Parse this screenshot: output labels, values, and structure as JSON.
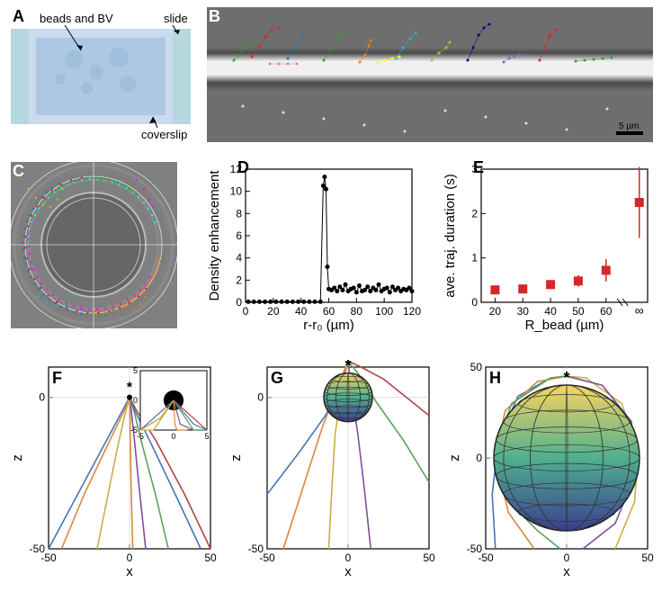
{
  "panelA": {
    "label": "A",
    "annotations": {
      "beads": "beads and BV",
      "slide": "slide",
      "coverslip": "coverslip"
    },
    "colors": {
      "bg": "#c9dbed",
      "innerRect": "#aec8e3",
      "sideBars": "#b5d8df",
      "bead": "#a0bfdc"
    }
  },
  "panelB": {
    "label": "B",
    "colors": {
      "bg": "#6e6e6e",
      "bright": "#f0f0f0",
      "dark": "#4a4a4a"
    },
    "scalebar": {
      "text": "5 µm",
      "color": "#000000"
    },
    "tracks": [
      {
        "c": "#d62728",
        "pts": [
          [
            40,
            40
          ],
          [
            48,
            28
          ],
          [
            55,
            18
          ],
          [
            62,
            10
          ],
          [
            70,
            8
          ]
        ]
      },
      {
        "c": "#1f77b4",
        "pts": [
          [
            80,
            42
          ],
          [
            88,
            30
          ],
          [
            95,
            18
          ],
          [
            102,
            12
          ]
        ]
      },
      {
        "c": "#2ca02c",
        "pts": [
          [
            120,
            44
          ],
          [
            128,
            30
          ],
          [
            136,
            20
          ],
          [
            140,
            15
          ]
        ]
      },
      {
        "c": "#ff7f0e",
        "pts": [
          [
            160,
            46
          ],
          [
            166,
            38
          ],
          [
            170,
            28
          ],
          [
            172,
            22
          ]
        ]
      },
      {
        "c": "#17becf",
        "pts": [
          [
            200,
            42
          ],
          [
            208,
            30
          ],
          [
            216,
            20
          ],
          [
            222,
            14
          ]
        ]
      },
      {
        "c": "#e377c2",
        "pts": [
          [
            60,
            48
          ],
          [
            70,
            48
          ],
          [
            80,
            48
          ],
          [
            90,
            48
          ]
        ]
      },
      {
        "c": "#bcbd22",
        "pts": [
          [
            240,
            44
          ],
          [
            248,
            36
          ],
          [
            256,
            30
          ],
          [
            260,
            24
          ]
        ]
      },
      {
        "c": "#00008b",
        "pts": [
          [
            280,
            44
          ],
          [
            286,
            30
          ],
          [
            292,
            16
          ],
          [
            298,
            8
          ],
          [
            304,
            4
          ]
        ]
      },
      {
        "c": "#9467bd",
        "pts": [
          [
            320,
            46
          ],
          [
            326,
            42
          ],
          [
            332,
            40
          ],
          [
            338,
            38
          ]
        ]
      },
      {
        "c": "#d62728",
        "pts": [
          [
            360,
            44
          ],
          [
            366,
            30
          ],
          [
            372,
            16
          ],
          [
            378,
            10
          ],
          [
            370,
            18
          ]
        ]
      },
      {
        "c": "#2ca02c",
        "pts": [
          [
            400,
            45
          ],
          [
            410,
            44
          ],
          [
            420,
            43
          ],
          [
            430,
            42
          ],
          [
            440,
            41
          ]
        ]
      },
      {
        "c": "#2ca02c",
        "pts": [
          [
            20,
            44
          ],
          [
            26,
            38
          ],
          [
            32,
            30
          ],
          [
            38,
            24
          ]
        ]
      },
      {
        "c": "#ffff00",
        "pts": [
          [
            180,
            47
          ],
          [
            188,
            44
          ],
          [
            196,
            42
          ],
          [
            204,
            40
          ]
        ]
      }
    ]
  },
  "panelC": {
    "label": "C",
    "colors": {
      "bg": "#808080",
      "beadCircle": "#666666",
      "beadHighlight": "#bfbfbf"
    },
    "tracks": [
      {
        "c": "#ff00ff",
        "r": 72,
        "arc": [
          30,
          200
        ]
      },
      {
        "c": "#00ffff",
        "r": 73,
        "arc": [
          180,
          340
        ]
      },
      {
        "c": "#ff7f0e",
        "r": 75,
        "arc": [
          10,
          90
        ]
      },
      {
        "c": "#2ca02c",
        "r": 74,
        "arc": [
          220,
          310
        ]
      },
      {
        "c": "#d62728",
        "r": 76,
        "arc": [
          260,
          40
        ]
      },
      {
        "c": "#1f77b4",
        "r": 78,
        "arc": [
          100,
          240
        ]
      }
    ],
    "freeTracks": [
      {
        "c": "#bcbd22",
        "pts": [
          [
            20,
            30
          ],
          [
            28,
            40
          ],
          [
            36,
            48
          ],
          [
            44,
            50
          ],
          [
            52,
            42
          ],
          [
            58,
            30
          ]
        ]
      },
      {
        "c": "#ff00ff",
        "pts": [
          [
            140,
            20
          ],
          [
            148,
            30
          ],
          [
            154,
            42
          ],
          [
            158,
            50
          ]
        ]
      },
      {
        "c": "#17becf",
        "pts": [
          [
            30,
            150
          ],
          [
            40,
            156
          ],
          [
            50,
            160
          ],
          [
            60,
            158
          ],
          [
            70,
            150
          ]
        ]
      },
      {
        "c": "#ff7f0e",
        "pts": [
          [
            150,
            150
          ],
          [
            144,
            158
          ],
          [
            136,
            164
          ],
          [
            128,
            160
          ]
        ]
      },
      {
        "c": "#2ca02c",
        "pts": [
          [
            90,
            170
          ],
          [
            98,
            172
          ],
          [
            106,
            170
          ],
          [
            114,
            164
          ]
        ]
      }
    ]
  },
  "panelD": {
    "label": "D",
    "xlabel": "r-r₀ (µm)",
    "ylabel": "Density enhancement",
    "xlim": [
      0,
      120
    ],
    "ylim": [
      0,
      12
    ],
    "xticks": [
      0,
      20,
      40,
      60,
      80,
      100,
      120
    ],
    "yticks": [
      0,
      2,
      4,
      6,
      8,
      10,
      12
    ],
    "font": {
      "label": 15,
      "tick": 12
    },
    "lineColor": "#000000",
    "points": [
      [
        2,
        0.05
      ],
      [
        6,
        0.05
      ],
      [
        10,
        0.05
      ],
      [
        14,
        0.05
      ],
      [
        18,
        0.05
      ],
      [
        22,
        0.05
      ],
      [
        26,
        0.05
      ],
      [
        30,
        0.05
      ],
      [
        34,
        0.05
      ],
      [
        38,
        0.05
      ],
      [
        42,
        0.05
      ],
      [
        46,
        0.05
      ],
      [
        50,
        0.05
      ],
      [
        54,
        0.05
      ],
      [
        56,
        10.5
      ],
      [
        57,
        11.3
      ],
      [
        58,
        10.2
      ],
      [
        59,
        3.2
      ],
      [
        60,
        1.2
      ],
      [
        62,
        1.1
      ],
      [
        64,
        1.3
      ],
      [
        66,
        1.0
      ],
      [
        68,
        1.4
      ],
      [
        70,
        1.1
      ],
      [
        72,
        1.6
      ],
      [
        74,
        1.0
      ],
      [
        76,
        1.2
      ],
      [
        78,
        1.3
      ],
      [
        80,
        0.9
      ],
      [
        82,
        1.5
      ],
      [
        84,
        1.0
      ],
      [
        86,
        1.1
      ],
      [
        88,
        1.4
      ],
      [
        90,
        1.0
      ],
      [
        92,
        1.3
      ],
      [
        94,
        1.1
      ],
      [
        96,
        1.6
      ],
      [
        98,
        1.0
      ],
      [
        100,
        1.2
      ],
      [
        102,
        1.3
      ],
      [
        104,
        0.9
      ],
      [
        106,
        1.4
      ],
      [
        108,
        1.1
      ],
      [
        110,
        1.3
      ],
      [
        112,
        1.0
      ],
      [
        114,
        1.2
      ],
      [
        116,
        1.1
      ],
      [
        118,
        1.3
      ],
      [
        120,
        1.0
      ]
    ]
  },
  "panelE": {
    "label": "E",
    "xlabel": "R_bead (µm)",
    "ylabel": "ave. traj. duration (s)",
    "xlim": [
      15,
      75
    ],
    "ylim": [
      0,
      3
    ],
    "xticks": [
      20,
      30,
      40,
      50,
      60
    ],
    "yticks": [
      0,
      1,
      2,
      3
    ],
    "inf_label": "∞",
    "break": true,
    "markerColor": "#d62728",
    "font": {
      "label": 15,
      "tick": 12
    },
    "points": [
      {
        "x": 20,
        "y": 0.28,
        "err": 0.1
      },
      {
        "x": 30,
        "y": 0.3,
        "err": 0.1
      },
      {
        "x": 40,
        "y": 0.4,
        "err": 0.1
      },
      {
        "x": 50,
        "y": 0.48,
        "err": 0.13
      },
      {
        "x": 60,
        "y": 0.72,
        "err": 0.25
      },
      {
        "x": 72,
        "y": 2.25,
        "err": 0.8
      }
    ]
  },
  "panelsFGH": {
    "xlabel": "x",
    "ylabel": "z",
    "xlim": [
      -50,
      50
    ],
    "ylim": [
      -50,
      10
    ],
    "xticks": [
      -50,
      0,
      50
    ],
    "yticks": [
      -50,
      0
    ],
    "yticks_H": [
      50,
      0,
      -50
    ],
    "font": {
      "label": 15,
      "tick": 12
    },
    "sphereColors": {
      "top": "#f7d560",
      "bottom": "#3a3f8f",
      "mid": "#4fb08f",
      "grid": "#333333"
    },
    "trajColors": [
      "#4575b4",
      "#d7883b",
      "#c9b040",
      "#7e4f9e",
      "#5aa35a",
      "#b44545",
      "#4575b4",
      "#d7883b"
    ],
    "F": {
      "label": "F",
      "sphereR": 1.5,
      "insetLim": 5,
      "traj": [
        [
          [
            -50,
            -50
          ],
          [
            -30,
            -30
          ],
          [
            -10,
            -10
          ],
          [
            -2,
            -2
          ],
          [
            0,
            0
          ]
        ],
        [
          [
            -42,
            -50
          ],
          [
            -28,
            -32
          ],
          [
            -12,
            -14
          ],
          [
            -2,
            -3
          ],
          [
            0,
            0
          ]
        ],
        [
          [
            -20,
            -50
          ],
          [
            -14,
            -34
          ],
          [
            -8,
            -18
          ],
          [
            -3,
            -6
          ],
          [
            0,
            0
          ]
        ],
        [
          [
            10,
            -50
          ],
          [
            6,
            -30
          ],
          [
            3,
            -14
          ],
          [
            1,
            -4
          ],
          [
            0,
            0
          ]
        ],
        [
          [
            24,
            -50
          ],
          [
            16,
            -32
          ],
          [
            8,
            -16
          ],
          [
            3,
            -5
          ],
          [
            0,
            0
          ]
        ],
        [
          [
            50,
            -50
          ],
          [
            34,
            -32
          ],
          [
            16,
            -14
          ],
          [
            4,
            -4
          ],
          [
            0,
            0
          ]
        ],
        [
          [
            44,
            -50
          ],
          [
            30,
            -34
          ],
          [
            14,
            -16
          ],
          [
            3,
            -4
          ],
          [
            0,
            0
          ]
        ],
        [
          [
            2,
            -50
          ],
          [
            1,
            -30
          ],
          [
            0.5,
            -14
          ],
          [
            0.2,
            -4
          ],
          [
            0,
            0
          ]
        ]
      ]
    },
    "G": {
      "label": "G",
      "sphereR": 15,
      "traj": [
        [
          [
            -50,
            -32
          ],
          [
            -30,
            -18
          ],
          [
            -14,
            -6
          ],
          [
            -4,
            4
          ],
          [
            0,
            12
          ]
        ],
        [
          [
            -40,
            -50
          ],
          [
            -28,
            -30
          ],
          [
            -16,
            -10
          ],
          [
            -6,
            4
          ],
          [
            0,
            12
          ]
        ],
        [
          [
            -12,
            -50
          ],
          [
            -10,
            -30
          ],
          [
            -8,
            -12
          ],
          [
            -4,
            2
          ],
          [
            0,
            12
          ]
        ],
        [
          [
            14,
            -50
          ],
          [
            10,
            -30
          ],
          [
            6,
            -12
          ],
          [
            2,
            2
          ],
          [
            0,
            12
          ]
        ],
        [
          [
            50,
            -28
          ],
          [
            34,
            -14
          ],
          [
            18,
            -2
          ],
          [
            6,
            8
          ],
          [
            0,
            12
          ]
        ],
        [
          [
            50,
            -6
          ],
          [
            36,
            0
          ],
          [
            22,
            6
          ],
          [
            8,
            10
          ],
          [
            0,
            12
          ]
        ]
      ]
    },
    "H": {
      "label": "H",
      "sphereR": 45,
      "ylimH": [
        -50,
        50
      ],
      "traj": [
        [
          [
            -44,
            -50
          ],
          [
            -46,
            -20
          ],
          [
            -42,
            10
          ],
          [
            -30,
            34
          ],
          [
            -10,
            44
          ],
          [
            0,
            45
          ]
        ],
        [
          [
            -20,
            -50
          ],
          [
            -36,
            -30
          ],
          [
            -44,
            0
          ],
          [
            -38,
            26
          ],
          [
            -18,
            42
          ],
          [
            0,
            45
          ]
        ],
        [
          [
            30,
            -50
          ],
          [
            42,
            -24
          ],
          [
            44,
            4
          ],
          [
            34,
            30
          ],
          [
            12,
            44
          ],
          [
            0,
            45
          ]
        ],
        [
          [
            10,
            -50
          ],
          [
            30,
            -36
          ],
          [
            42,
            -10
          ],
          [
            40,
            20
          ],
          [
            22,
            40
          ],
          [
            0,
            45
          ]
        ],
        [
          [
            -4,
            -50
          ],
          [
            -18,
            -40
          ],
          [
            -36,
            -24
          ],
          [
            -44,
            4
          ],
          [
            -34,
            30
          ],
          [
            -10,
            44
          ],
          [
            0,
            45
          ]
        ]
      ]
    }
  }
}
